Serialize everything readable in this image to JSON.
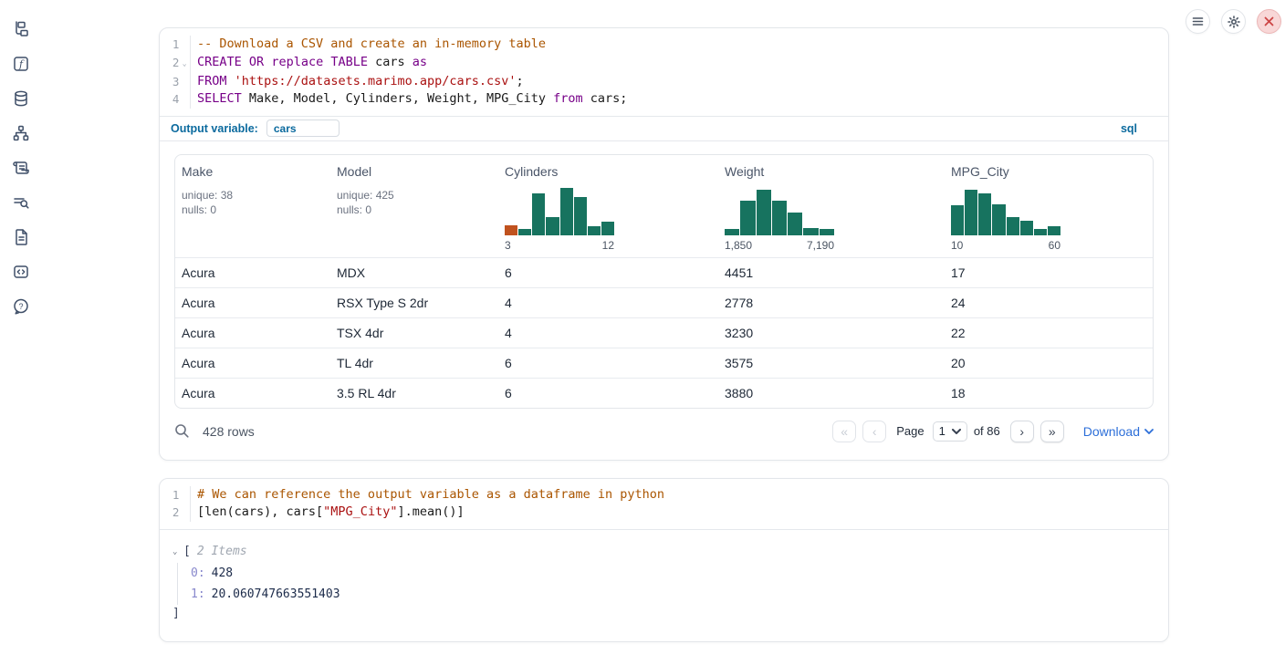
{
  "colors": {
    "teal": "#17735F",
    "orange": "#C0521E",
    "accent_blue": "#0B6A9E",
    "link_blue": "#2D6FD9"
  },
  "topbar": {
    "buttons": [
      {
        "name": "menu-button",
        "icon": "hamburger-icon"
      },
      {
        "name": "settings-button",
        "icon": "gear-icon"
      },
      {
        "name": "close-button",
        "icon": "close-icon"
      }
    ]
  },
  "sidebar": {
    "items": [
      {
        "icon": "file-explorer-icon"
      },
      {
        "icon": "variables-icon"
      },
      {
        "icon": "datasources-icon"
      },
      {
        "icon": "dependency-graph-icon"
      },
      {
        "icon": "scratchpad-icon"
      },
      {
        "icon": "logs-icon"
      },
      {
        "icon": "snippets-icon"
      },
      {
        "icon": "code-output-icon"
      },
      {
        "icon": "help-icon"
      }
    ]
  },
  "sql_cell": {
    "code_lines": [
      {
        "num": "1",
        "fold": false,
        "tokens": [
          [
            "-- Download a CSV and create an in-memory table",
            "comment"
          ]
        ]
      },
      {
        "num": "2",
        "fold": true,
        "tokens": [
          [
            "CREATE",
            "keyword"
          ],
          [
            " ",
            "plain"
          ],
          [
            "OR",
            "keyword"
          ],
          [
            " replace ",
            "keyword"
          ],
          [
            "TABLE",
            "keyword"
          ],
          [
            " cars ",
            "plain"
          ],
          [
            "as",
            "keyword"
          ]
        ]
      },
      {
        "num": "3",
        "fold": false,
        "tokens": [
          [
            "FROM",
            "keyword"
          ],
          [
            " ",
            "plain"
          ],
          [
            "'https://datasets.marimo.app/cars.csv'",
            "string"
          ],
          [
            ";",
            "plain"
          ]
        ]
      },
      {
        "num": "4",
        "fold": false,
        "tokens": [
          [
            "SELECT",
            "keyword"
          ],
          [
            " Make, Model, Cylinders, Weight, MPG_City ",
            "plain"
          ],
          [
            "from",
            "keyword"
          ],
          [
            " cars;",
            "plain"
          ]
        ]
      }
    ],
    "output_variable_label": "Output variable:",
    "output_variable_value": "cars",
    "language_badge": "sql"
  },
  "table": {
    "columns": [
      {
        "name": "Make",
        "stats": [
          "unique: 38",
          "nulls: 0"
        ]
      },
      {
        "name": "Model",
        "stats": [
          "unique: 425",
          "nulls: 0"
        ]
      },
      {
        "name": "Cylinders",
        "histogram": {
          "heights": [
            21,
            12,
            87,
            38,
            100,
            80,
            19,
            27
          ],
          "bar_colors": [
            "#C0521E",
            null,
            null,
            null,
            null,
            null,
            null,
            null
          ],
          "min_label": "3",
          "max_label": "12"
        }
      },
      {
        "name": "Weight",
        "histogram": {
          "heights": [
            13,
            73,
            96,
            73,
            48,
            15,
            13
          ],
          "min_label": "1,850",
          "max_label": "7,190"
        }
      },
      {
        "name": "MPG_City",
        "histogram": {
          "heights": [
            62,
            96,
            88,
            65,
            38,
            30,
            12,
            19
          ],
          "min_label": "10",
          "max_label": "60"
        }
      }
    ],
    "rows": [
      [
        "Acura",
        "MDX",
        "6",
        "4451",
        "17"
      ],
      [
        "Acura",
        "RSX Type S 2dr",
        "4",
        "2778",
        "24"
      ],
      [
        "Acura",
        "TSX 4dr",
        "4",
        "3230",
        "22"
      ],
      [
        "Acura",
        "TL 4dr",
        "6",
        "3575",
        "20"
      ],
      [
        "Acura",
        "3.5 RL 4dr",
        "6",
        "3880",
        "18"
      ]
    ],
    "footer": {
      "row_count": "428 rows",
      "page_label": "Page",
      "page_value": "1",
      "total_label": "of 86",
      "download_label": "Download",
      "pagination": {
        "first_glyph": "«",
        "prev_glyph": "‹",
        "next_glyph": "›",
        "last_glyph": "»"
      }
    }
  },
  "python_cell": {
    "code_lines": [
      {
        "num": "1",
        "fold": false,
        "tokens": [
          [
            "# We can reference the output variable as a dataframe in python",
            "comment"
          ]
        ]
      },
      {
        "num": "2",
        "fold": false,
        "tokens": [
          [
            "[len(cars), cars[",
            "plain"
          ],
          [
            "\"MPG_City\"",
            "string"
          ],
          [
            "].mean()]",
            "plain"
          ]
        ]
      }
    ],
    "output": {
      "open_bracket": "[",
      "items_label": "2 Items",
      "entries": [
        {
          "key": "0:",
          "value": "428"
        },
        {
          "key": "1:",
          "value": "20.060747663551403"
        }
      ],
      "close_bracket": "]"
    }
  }
}
